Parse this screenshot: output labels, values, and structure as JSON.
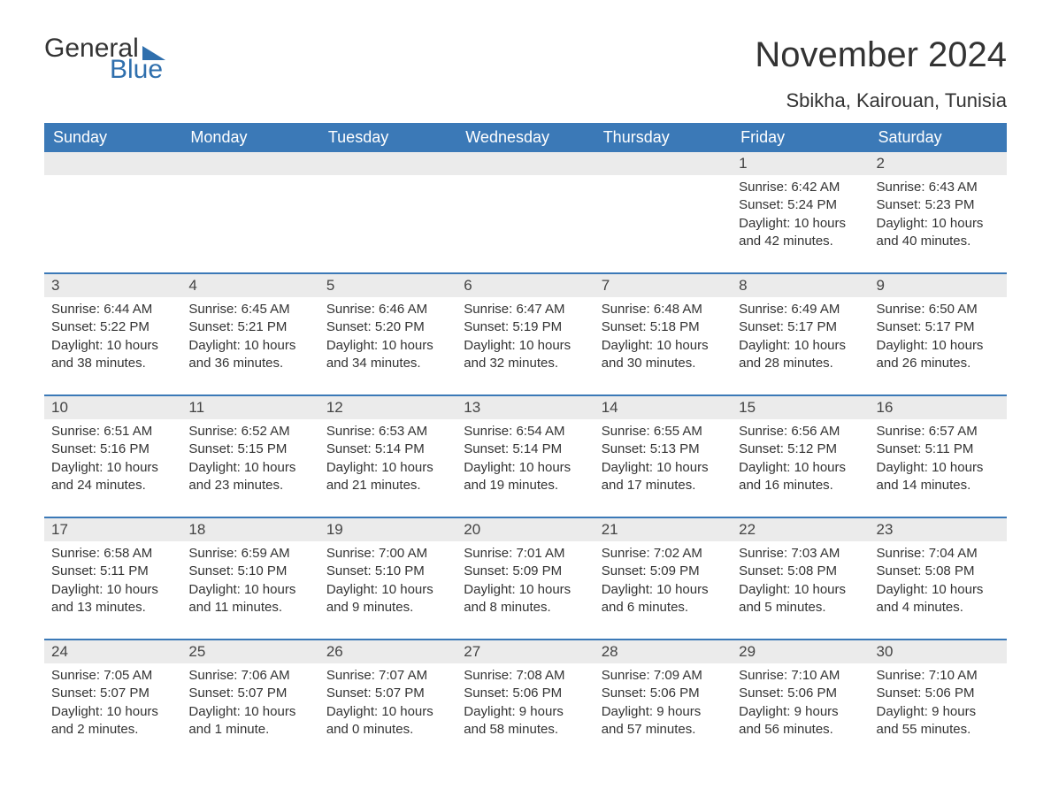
{
  "logo": {
    "word1": "General",
    "word2": "Blue",
    "brand_color": "#2f6fad"
  },
  "title": "November 2024",
  "location": "Sbikha, Kairouan, Tunisia",
  "colors": {
    "header_bg": "#3b79b7",
    "header_text": "#ffffff",
    "daynum_bg": "#ebebeb",
    "text": "#333333",
    "row_border": "#3b79b7",
    "page_bg": "#ffffff"
  },
  "typography": {
    "title_fontsize": 40,
    "location_fontsize": 22,
    "dayheader_fontsize": 18,
    "daynum_fontsize": 17,
    "body_fontsize": 15
  },
  "day_headers": [
    "Sunday",
    "Monday",
    "Tuesday",
    "Wednesday",
    "Thursday",
    "Friday",
    "Saturday"
  ],
  "labels": {
    "sunrise": "Sunrise:",
    "sunset": "Sunset:",
    "daylight": "Daylight:"
  },
  "weeks": [
    [
      {
        "empty": true
      },
      {
        "empty": true
      },
      {
        "empty": true
      },
      {
        "empty": true
      },
      {
        "empty": true
      },
      {
        "day": "1",
        "sunrise": "6:42 AM",
        "sunset": "5:24 PM",
        "daylight": "10 hours and 42 minutes."
      },
      {
        "day": "2",
        "sunrise": "6:43 AM",
        "sunset": "5:23 PM",
        "daylight": "10 hours and 40 minutes."
      }
    ],
    [
      {
        "day": "3",
        "sunrise": "6:44 AM",
        "sunset": "5:22 PM",
        "daylight": "10 hours and 38 minutes."
      },
      {
        "day": "4",
        "sunrise": "6:45 AM",
        "sunset": "5:21 PM",
        "daylight": "10 hours and 36 minutes."
      },
      {
        "day": "5",
        "sunrise": "6:46 AM",
        "sunset": "5:20 PM",
        "daylight": "10 hours and 34 minutes."
      },
      {
        "day": "6",
        "sunrise": "6:47 AM",
        "sunset": "5:19 PM",
        "daylight": "10 hours and 32 minutes."
      },
      {
        "day": "7",
        "sunrise": "6:48 AM",
        "sunset": "5:18 PM",
        "daylight": "10 hours and 30 minutes."
      },
      {
        "day": "8",
        "sunrise": "6:49 AM",
        "sunset": "5:17 PM",
        "daylight": "10 hours and 28 minutes."
      },
      {
        "day": "9",
        "sunrise": "6:50 AM",
        "sunset": "5:17 PM",
        "daylight": "10 hours and 26 minutes."
      }
    ],
    [
      {
        "day": "10",
        "sunrise": "6:51 AM",
        "sunset": "5:16 PM",
        "daylight": "10 hours and 24 minutes."
      },
      {
        "day": "11",
        "sunrise": "6:52 AM",
        "sunset": "5:15 PM",
        "daylight": "10 hours and 23 minutes."
      },
      {
        "day": "12",
        "sunrise": "6:53 AM",
        "sunset": "5:14 PM",
        "daylight": "10 hours and 21 minutes."
      },
      {
        "day": "13",
        "sunrise": "6:54 AM",
        "sunset": "5:14 PM",
        "daylight": "10 hours and 19 minutes."
      },
      {
        "day": "14",
        "sunrise": "6:55 AM",
        "sunset": "5:13 PM",
        "daylight": "10 hours and 17 minutes."
      },
      {
        "day": "15",
        "sunrise": "6:56 AM",
        "sunset": "5:12 PM",
        "daylight": "10 hours and 16 minutes."
      },
      {
        "day": "16",
        "sunrise": "6:57 AM",
        "sunset": "5:11 PM",
        "daylight": "10 hours and 14 minutes."
      }
    ],
    [
      {
        "day": "17",
        "sunrise": "6:58 AM",
        "sunset": "5:11 PM",
        "daylight": "10 hours and 13 minutes."
      },
      {
        "day": "18",
        "sunrise": "6:59 AM",
        "sunset": "5:10 PM",
        "daylight": "10 hours and 11 minutes."
      },
      {
        "day": "19",
        "sunrise": "7:00 AM",
        "sunset": "5:10 PM",
        "daylight": "10 hours and 9 minutes."
      },
      {
        "day": "20",
        "sunrise": "7:01 AM",
        "sunset": "5:09 PM",
        "daylight": "10 hours and 8 minutes."
      },
      {
        "day": "21",
        "sunrise": "7:02 AM",
        "sunset": "5:09 PM",
        "daylight": "10 hours and 6 minutes."
      },
      {
        "day": "22",
        "sunrise": "7:03 AM",
        "sunset": "5:08 PM",
        "daylight": "10 hours and 5 minutes."
      },
      {
        "day": "23",
        "sunrise": "7:04 AM",
        "sunset": "5:08 PM",
        "daylight": "10 hours and 4 minutes."
      }
    ],
    [
      {
        "day": "24",
        "sunrise": "7:05 AM",
        "sunset": "5:07 PM",
        "daylight": "10 hours and 2 minutes."
      },
      {
        "day": "25",
        "sunrise": "7:06 AM",
        "sunset": "5:07 PM",
        "daylight": "10 hours and 1 minute."
      },
      {
        "day": "26",
        "sunrise": "7:07 AM",
        "sunset": "5:07 PM",
        "daylight": "10 hours and 0 minutes."
      },
      {
        "day": "27",
        "sunrise": "7:08 AM",
        "sunset": "5:06 PM",
        "daylight": "9 hours and 58 minutes."
      },
      {
        "day": "28",
        "sunrise": "7:09 AM",
        "sunset": "5:06 PM",
        "daylight": "9 hours and 57 minutes."
      },
      {
        "day": "29",
        "sunrise": "7:10 AM",
        "sunset": "5:06 PM",
        "daylight": "9 hours and 56 minutes."
      },
      {
        "day": "30",
        "sunrise": "7:10 AM",
        "sunset": "5:06 PM",
        "daylight": "9 hours and 55 minutes."
      }
    ]
  ]
}
